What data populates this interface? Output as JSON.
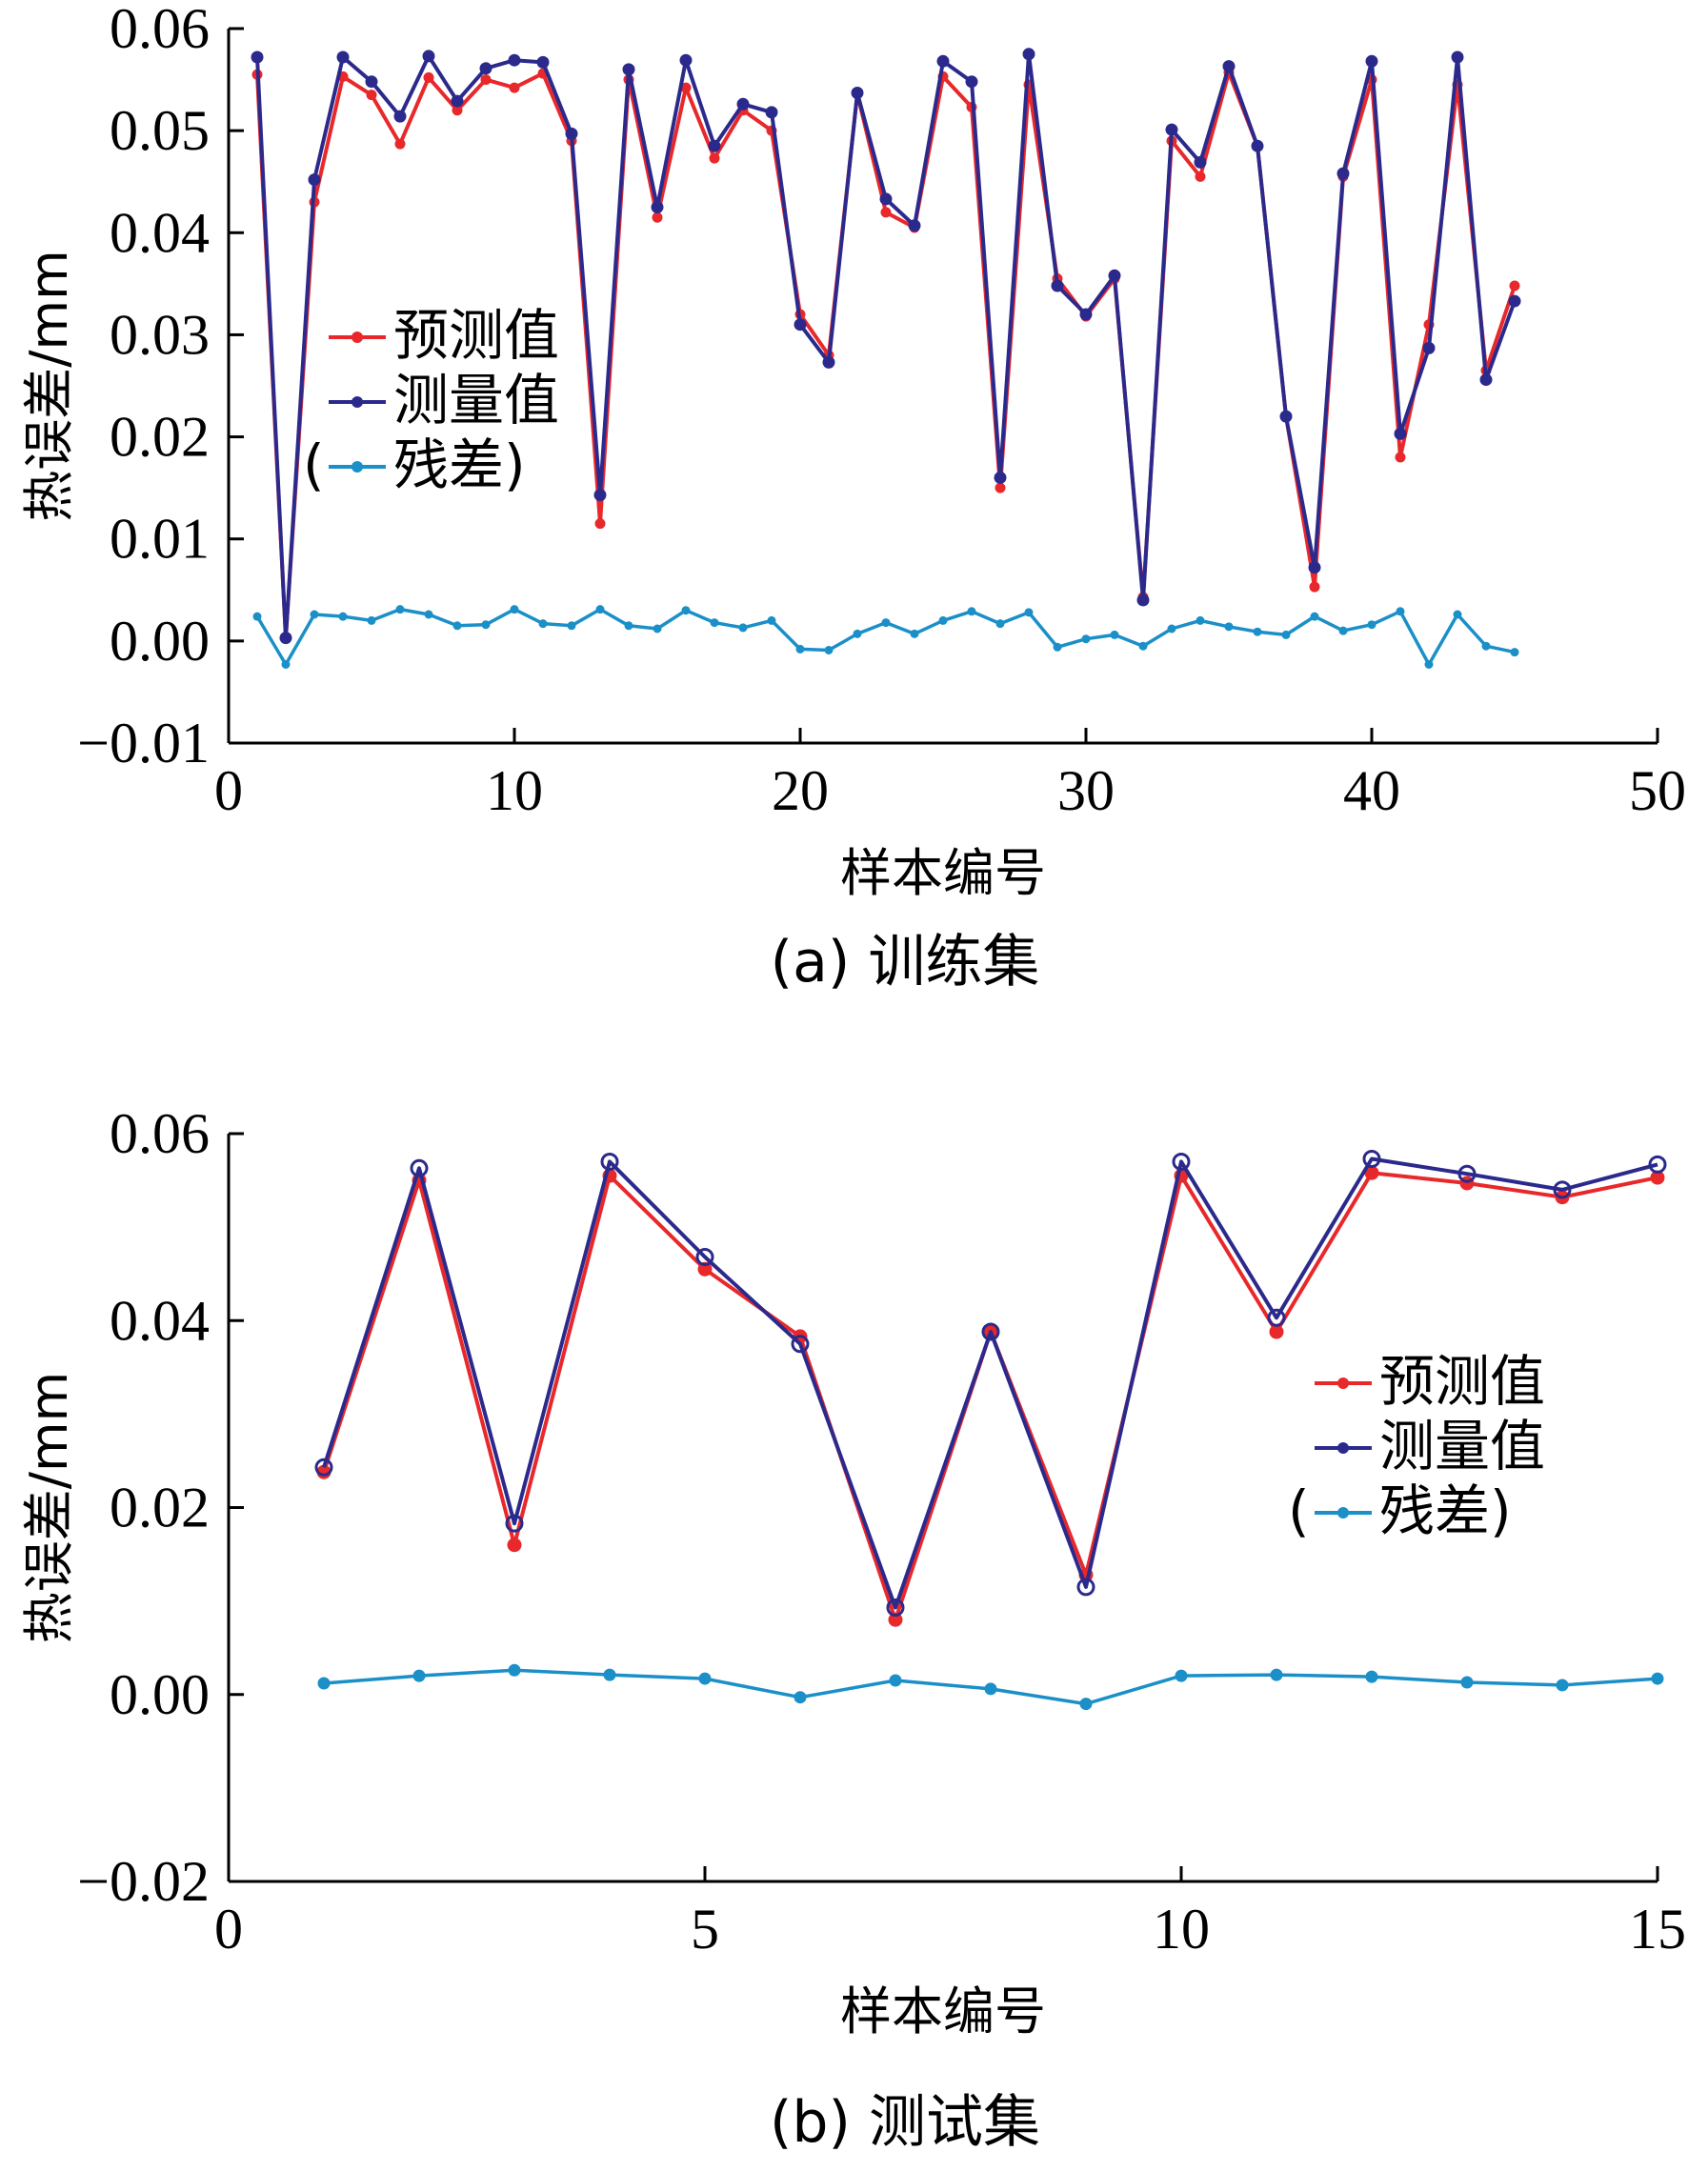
{
  "colors": {
    "predicted": "#e8282b",
    "measured": "#2b2a8c",
    "residual": "#1a8fc8",
    "axis": "#000000"
  },
  "chart_data": [
    {
      "type": "line",
      "caption": "(a)  训练集",
      "xlabel": "样本编号",
      "ylabel": "热误差/mm",
      "xlim": [
        0,
        50
      ],
      "ylim": [
        -0.01,
        0.06
      ],
      "xticks": [
        0,
        10,
        20,
        30,
        40,
        50
      ],
      "yticks": [
        -0.01,
        0.0,
        0.01,
        0.02,
        0.03,
        0.04,
        0.05,
        0.06
      ],
      "xtick_labels": [
        "0",
        "10",
        "20",
        "30",
        "40",
        "50"
      ],
      "ytick_labels": [
        "−0.01",
        "0.00",
        "0.01",
        "0.02",
        "0.03",
        "0.04",
        "0.05",
        "0.06"
      ],
      "legend": {
        "items": [
          "预测值",
          "测量值",
          "残差)"
        ],
        "prefix": "(",
        "placement": "center-left"
      },
      "x": [
        1,
        2,
        3,
        4,
        5,
        6,
        7,
        8,
        9,
        10,
        11,
        12,
        13,
        14,
        15,
        16,
        17,
        18,
        19,
        20,
        21,
        22,
        23,
        24,
        25,
        26,
        27,
        28,
        29,
        30,
        31,
        32,
        33,
        34,
        35,
        36,
        37,
        38,
        39,
        40,
        41,
        42,
        43,
        44,
        45
      ],
      "series": [
        {
          "name": "预测值",
          "values": [
            0.0555,
            0.0003,
            0.043,
            0.0553,
            0.0535,
            0.0487,
            0.0552,
            0.052,
            0.055,
            0.0542,
            0.0556,
            0.049,
            0.0115,
            0.055,
            0.0415,
            0.0542,
            0.0473,
            0.052,
            0.05,
            0.032,
            0.028,
            0.0536,
            0.042,
            0.0405,
            0.0553,
            0.0523,
            0.015,
            0.0545,
            0.0355,
            0.0318,
            0.0355,
            0.0043,
            0.049,
            0.0455,
            0.0557,
            0.0485,
            0.022,
            0.0053,
            0.0455,
            0.055,
            0.018,
            0.031,
            0.0545,
            0.0265,
            0.0348
          ]
        },
        {
          "name": "测量值",
          "values": [
            0.0572,
            0.0003,
            0.0452,
            0.0572,
            0.0548,
            0.0514,
            0.0573,
            0.0529,
            0.0561,
            0.0569,
            0.0567,
            0.0497,
            0.0143,
            0.056,
            0.0425,
            0.0569,
            0.0485,
            0.0526,
            0.0518,
            0.031,
            0.0273,
            0.0537,
            0.0433,
            0.0407,
            0.0568,
            0.0548,
            0.016,
            0.0575,
            0.0348,
            0.032,
            0.0358,
            0.004,
            0.0501,
            0.0469,
            0.0563,
            0.0485,
            0.022,
            0.0072,
            0.0458,
            0.0568,
            0.0203,
            0.0287,
            0.0572,
            0.0256,
            0.0333
          ]
        },
        {
          "name": "残差)",
          "values": [
            0.0024,
            -0.0023,
            0.0026,
            0.0024,
            0.002,
            0.0031,
            0.0026,
            0.0015,
            0.0016,
            0.0031,
            0.0017,
            0.0015,
            0.0031,
            0.0015,
            0.0012,
            0.003,
            0.0018,
            0.0013,
            0.002,
            -0.0008,
            -0.0009,
            0.0007,
            0.0018,
            0.0007,
            0.002,
            0.0029,
            0.0017,
            0.0028,
            -0.0006,
            0.0002,
            0.0006,
            -0.0005,
            0.0012,
            0.002,
            0.0014,
            0.0009,
            0.0006,
            0.0024,
            0.001,
            0.0016,
            0.0029,
            -0.0023,
            0.0026,
            -0.0005,
            -0.0011
          ]
        }
      ]
    },
    {
      "type": "line",
      "caption": "(b)  测试集",
      "xlabel": "样本编号",
      "ylabel": "热误差/mm",
      "xlim": [
        0,
        15
      ],
      "ylim": [
        -0.02,
        0.06
      ],
      "xticks": [
        0,
        5,
        10,
        15
      ],
      "yticks": [
        -0.02,
        0.0,
        0.02,
        0.04,
        0.06
      ],
      "xtick_labels": [
        "0",
        "5",
        "10",
        "15"
      ],
      "ytick_labels": [
        "−0.02",
        "0.00",
        "0.02",
        "0.04",
        "0.06"
      ],
      "legend": {
        "items": [
          "预测值",
          "测量值",
          "残差)"
        ],
        "prefix": "(",
        "placement": "right"
      },
      "x": [
        1,
        2,
        3,
        4,
        5,
        6,
        7,
        8,
        9,
        10,
        11,
        12,
        13,
        14,
        15
      ],
      "series": [
        {
          "name": "预测值",
          "values": [
            0.0238,
            0.055,
            0.016,
            0.0555,
            0.0455,
            0.0383,
            0.008,
            0.0388,
            0.0128,
            0.0555,
            0.0388,
            0.0558,
            0.0547,
            0.0532,
            0.0553
          ]
        },
        {
          "name": "测量值",
          "values": [
            0.0243,
            0.0563,
            0.0183,
            0.057,
            0.0468,
            0.0375,
            0.0093,
            0.0388,
            0.0115,
            0.057,
            0.0403,
            0.0573,
            0.0557,
            0.054,
            0.0567
          ]
        },
        {
          "name": "残差)",
          "values": [
            0.0012,
            0.002,
            0.0026,
            0.0021,
            0.0017,
            -0.0003,
            0.0015,
            0.0006,
            -0.001,
            0.002,
            0.0021,
            0.0019,
            0.0013,
            0.001,
            0.0017
          ]
        }
      ]
    }
  ]
}
